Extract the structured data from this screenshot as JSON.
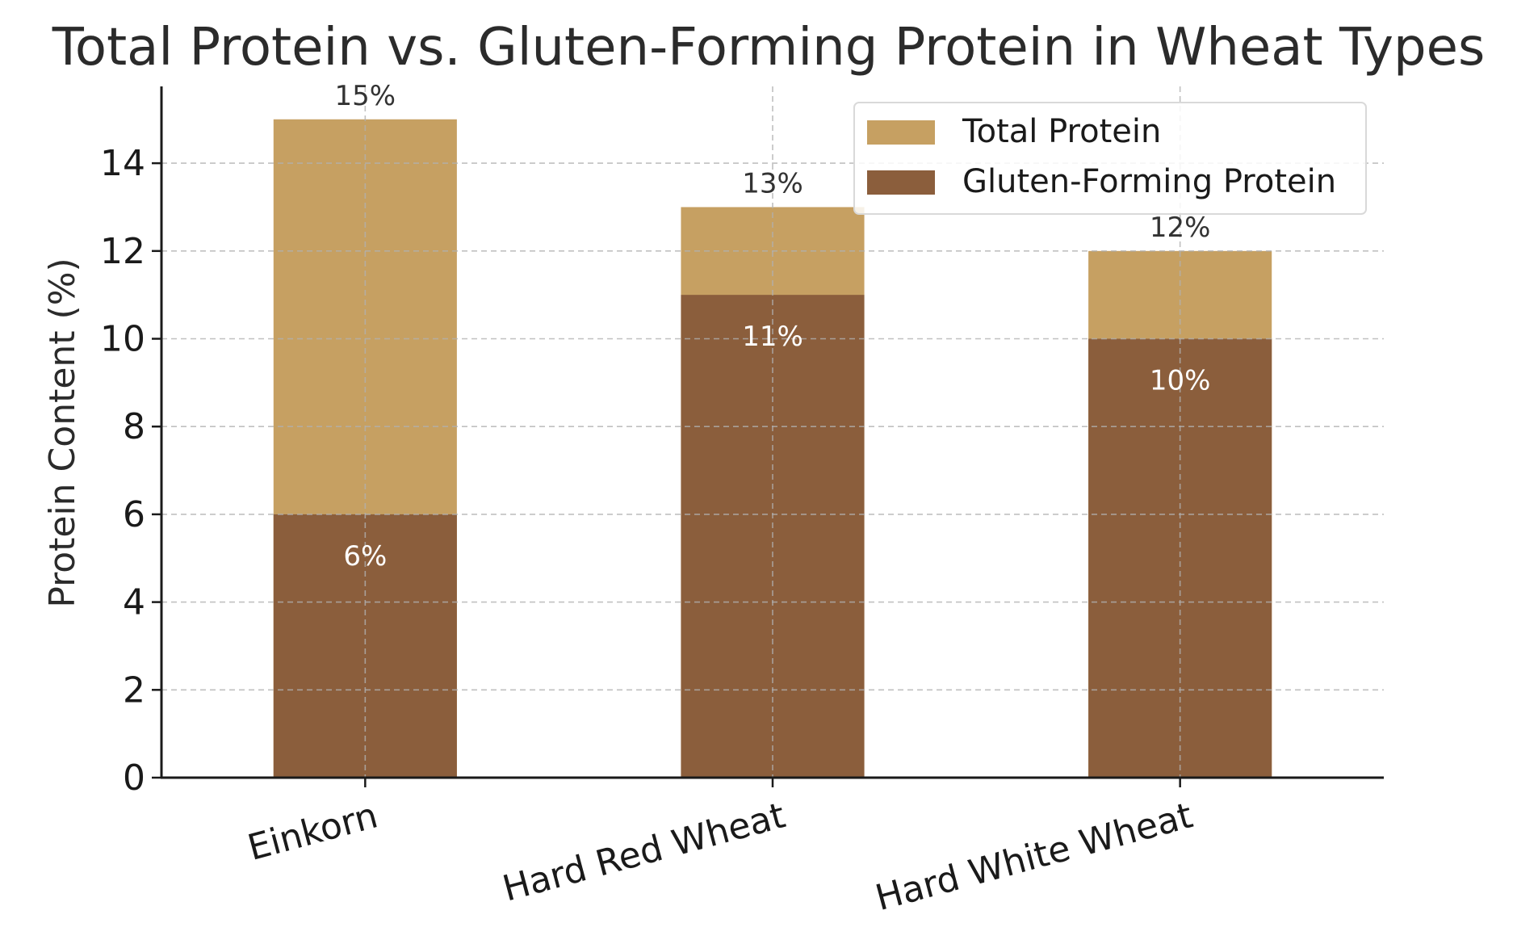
{
  "chart_data": {
    "type": "bar",
    "title": "Total Protein vs. Gluten-Forming Protein in Wheat Types",
    "xlabel": "",
    "ylabel": "Protein Content (%)",
    "categories": [
      "Einkorn",
      "Hard Red Wheat",
      "Hard White Wheat"
    ],
    "series": [
      {
        "name": "Total Protein",
        "values": [
          15,
          13,
          12
        ],
        "labels": [
          "15%",
          "13%",
          "12%"
        ],
        "color": "#C6A062"
      },
      {
        "name": "Gluten-Forming Protein",
        "values": [
          6,
          11,
          10
        ],
        "labels": [
          "6%",
          "11%",
          "10%"
        ],
        "color": "#8B5E3C"
      }
    ],
    "ylim": [
      0,
      15.75
    ],
    "yticks": [
      0,
      2,
      4,
      6,
      8,
      10,
      12,
      14
    ],
    "grid": true,
    "legend_position": "top-right",
    "overlaid": true
  }
}
